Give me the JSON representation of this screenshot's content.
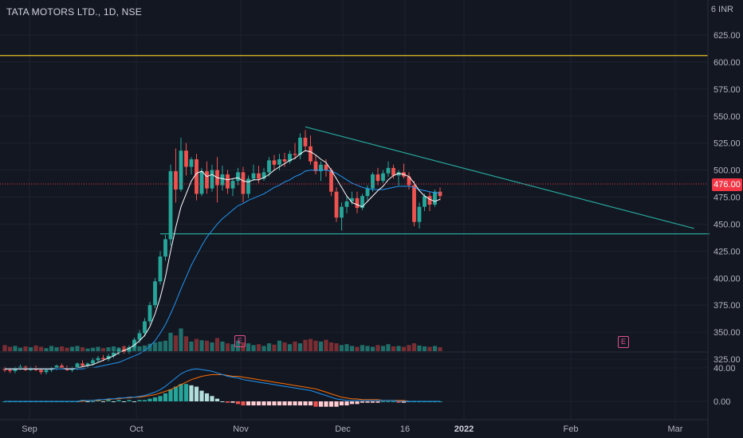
{
  "header": {
    "symbol_title": "TATA MOTORS LTD., 1D, NSE",
    "currency": "INR",
    "currency_prefix": "6"
  },
  "price": {
    "current": 476.0,
    "current_label": "476.00",
    "last_close_color": "#f23645"
  },
  "colors": {
    "up": "#26a69a",
    "down": "#ef5350",
    "vol_up": "#1f6f6a",
    "vol_down": "#7a2e33",
    "ma_fast": "#ffffff",
    "ma_slow": "#2196f3",
    "trend": "#26a69a",
    "resistance": "#e6c229",
    "macd": "#2196f3",
    "signal": "#ff6d00"
  },
  "events": [
    {
      "label": "E"
    },
    {
      "label": "E"
    }
  ],
  "chart_data": {
    "type": "candlestick",
    "y_axis": {
      "ticks": [
        325,
        350,
        375,
        400,
        425,
        450,
        475,
        500,
        525,
        550,
        575,
        600,
        625
      ],
      "tick_labels": [
        "325.00",
        "350.00",
        "375.00",
        "400.00",
        "425.00",
        "450.00",
        "475.00",
        "500.00",
        "525.00",
        "550.00",
        "575.00",
        "600.00",
        "625.00"
      ]
    },
    "macd_axis": {
      "ticks": [
        0,
        40
      ],
      "tick_labels": [
        "0.00",
        "40.00"
      ]
    },
    "x_axis": {
      "labels": [
        "Sep",
        "Oct",
        "Nov",
        "Dec",
        "16",
        "2022",
        "Feb",
        "Mar"
      ],
      "bold": [
        "2022"
      ]
    },
    "horizontal_lines": [
      {
        "price": 606,
        "name": "resistance"
      },
      {
        "price": 441,
        "name": "support"
      }
    ],
    "trendline": {
      "from": {
        "bar": 58,
        "price": 540
      },
      "to": {
        "bar": 133,
        "price": 446
      }
    },
    "candles": [
      [
        316,
        318,
        313,
        315
      ],
      [
        315,
        317,
        312,
        314
      ],
      [
        314,
        318,
        312,
        317
      ],
      [
        317,
        320,
        315,
        318
      ],
      [
        318,
        319,
        314,
        315
      ],
      [
        315,
        318,
        314,
        317
      ],
      [
        317,
        319,
        314,
        315
      ],
      [
        315,
        317,
        311,
        313
      ],
      [
        313,
        316,
        311,
        315
      ],
      [
        315,
        318,
        313,
        317
      ],
      [
        317,
        320,
        315,
        319
      ],
      [
        319,
        321,
        316,
        317
      ],
      [
        317,
        319,
        314,
        315
      ],
      [
        315,
        318,
        313,
        317
      ],
      [
        317,
        322,
        315,
        321
      ],
      [
        321,
        324,
        318,
        319
      ],
      [
        319,
        322,
        317,
        321
      ],
      [
        321,
        326,
        319,
        324
      ],
      [
        324,
        328,
        322,
        326
      ],
      [
        326,
        329,
        323,
        325
      ],
      [
        325,
        330,
        323,
        328
      ],
      [
        328,
        333,
        326,
        331
      ],
      [
        331,
        336,
        329,
        334
      ],
      [
        334,
        337,
        330,
        332
      ],
      [
        332,
        338,
        330,
        336
      ],
      [
        336,
        345,
        334,
        343
      ],
      [
        343,
        352,
        340,
        349
      ],
      [
        349,
        363,
        346,
        360
      ],
      [
        360,
        378,
        357,
        375
      ],
      [
        375,
        400,
        372,
        397
      ],
      [
        397,
        425,
        394,
        420
      ],
      [
        420,
        440,
        416,
        436
      ],
      [
        436,
        505,
        430,
        499
      ],
      [
        499,
        520,
        470,
        482
      ],
      [
        482,
        530,
        480,
        518
      ],
      [
        518,
        525,
        495,
        503
      ],
      [
        503,
        512,
        496,
        510
      ],
      [
        510,
        515,
        472,
        478
      ],
      [
        478,
        502,
        476,
        499
      ],
      [
        499,
        508,
        478,
        483
      ],
      [
        483,
        505,
        480,
        500
      ],
      [
        500,
        512,
        470,
        486
      ],
      [
        486,
        504,
        481,
        496
      ],
      [
        496,
        500,
        478,
        483
      ],
      [
        483,
        492,
        476,
        490
      ],
      [
        490,
        502,
        486,
        498
      ],
      [
        498,
        503,
        470,
        478
      ],
      [
        478,
        495,
        474,
        492
      ],
      [
        492,
        505,
        490,
        497
      ],
      [
        497,
        504,
        488,
        492
      ],
      [
        492,
        502,
        490,
        498
      ],
      [
        498,
        512,
        494,
        509
      ],
      [
        509,
        514,
        500,
        505
      ],
      [
        505,
        515,
        500,
        510
      ],
      [
        510,
        516,
        503,
        508
      ],
      [
        508,
        518,
        506,
        515
      ],
      [
        515,
        525,
        510,
        514
      ],
      [
        514,
        534,
        510,
        530
      ],
      [
        530,
        537,
        518,
        522
      ],
      [
        522,
        532,
        505,
        508
      ],
      [
        508,
        514,
        496,
        499
      ],
      [
        499,
        508,
        490,
        505
      ],
      [
        505,
        510,
        494,
        500
      ],
      [
        500,
        502,
        476,
        480
      ],
      [
        480,
        484,
        452,
        456
      ],
      [
        456,
        470,
        444,
        466
      ],
      [
        466,
        476,
        460,
        471
      ],
      [
        471,
        480,
        468,
        474
      ],
      [
        474,
        480,
        460,
        465
      ],
      [
        465,
        478,
        463,
        476
      ],
      [
        476,
        486,
        472,
        483
      ],
      [
        483,
        498,
        480,
        496
      ],
      [
        496,
        502,
        486,
        490
      ],
      [
        490,
        500,
        488,
        497
      ],
      [
        497,
        508,
        494,
        502
      ],
      [
        502,
        505,
        492,
        495
      ],
      [
        495,
        500,
        486,
        498
      ],
      [
        498,
        506,
        492,
        494
      ],
      [
        494,
        498,
        482,
        486
      ],
      [
        486,
        490,
        448,
        452
      ],
      [
        452,
        470,
        446,
        466
      ],
      [
        466,
        478,
        462,
        476
      ],
      [
        476,
        480,
        462,
        468
      ],
      [
        468,
        482,
        466,
        480
      ],
      [
        480,
        484,
        472,
        476
      ]
    ],
    "ma_fast": [
      316,
      316,
      316,
      316,
      316,
      316,
      316,
      316,
      316,
      316,
      317,
      317,
      316,
      316,
      317,
      318,
      319,
      320,
      322,
      324,
      326,
      328,
      331,
      333,
      335,
      338,
      342,
      347,
      355,
      367,
      382,
      401,
      425,
      447,
      466,
      478,
      490,
      497,
      499,
      494,
      496,
      493,
      492,
      491,
      492,
      493,
      490,
      489,
      491,
      491,
      493,
      496,
      500,
      503,
      506,
      509,
      511,
      515,
      518,
      517,
      514,
      510,
      507,
      500,
      492,
      484,
      476,
      470,
      468,
      466,
      471,
      476,
      481,
      485,
      491,
      495,
      497,
      496,
      494,
      488,
      481,
      476,
      473,
      471,
      473
    ],
    "ma_slow": [
      316,
      316,
      316,
      316,
      316,
      316,
      316,
      316,
      316,
      316,
      316,
      316,
      316,
      316,
      316,
      316,
      317,
      317,
      318,
      319,
      320,
      321,
      322,
      324,
      326,
      328,
      330,
      333,
      337,
      342,
      349,
      357,
      367,
      378,
      390,
      401,
      412,
      421,
      430,
      438,
      444,
      450,
      455,
      459,
      463,
      467,
      469,
      472,
      474,
      476,
      478,
      481,
      484,
      486,
      489,
      491,
      494,
      496,
      499,
      500,
      500,
      500,
      500,
      499,
      497,
      494,
      491,
      488,
      486,
      484,
      483,
      482,
      482,
      482,
      483,
      484,
      485,
      485,
      485,
      484,
      482,
      481,
      480,
      479,
      479
    ],
    "macd": [
      0,
      0,
      0,
      0,
      0,
      0,
      0,
      0,
      0,
      0,
      0,
      0,
      0,
      0,
      0,
      1,
      1,
      1,
      2,
      2,
      3,
      3,
      4,
      4,
      5,
      5,
      6,
      7,
      9,
      11,
      14,
      18,
      23,
      28,
      33,
      36,
      38,
      39,
      38,
      37,
      36,
      34,
      32,
      30,
      29,
      28,
      26,
      25,
      24,
      23,
      22,
      21,
      20,
      19,
      18,
      17,
      16,
      15,
      14,
      13,
      11,
      9,
      7,
      5,
      3,
      2,
      1,
      1,
      1,
      1,
      1,
      1,
      1,
      1,
      1,
      1,
      0,
      0,
      0,
      0,
      0,
      0,
      0,
      0,
      0
    ],
    "signal": [
      0,
      0,
      0,
      0,
      0,
      0,
      0,
      0,
      0,
      0,
      0,
      0,
      0,
      0,
      0,
      0,
      1,
      1,
      1,
      2,
      2,
      3,
      3,
      4,
      4,
      5,
      5,
      6,
      7,
      8,
      10,
      12,
      14,
      17,
      20,
      23,
      26,
      28,
      30,
      31,
      32,
      32,
      32,
      31,
      30,
      30,
      29,
      28,
      27,
      26,
      25,
      24,
      23,
      22,
      21,
      20,
      19,
      18,
      17,
      16,
      15,
      13,
      11,
      9,
      7,
      5,
      4,
      3,
      3,
      2,
      2,
      2,
      2,
      1,
      1,
      1,
      1,
      1,
      0,
      0,
      0,
      0,
      0,
      0,
      0
    ],
    "volume": [
      14,
      10,
      12,
      8,
      11,
      9,
      13,
      10,
      7,
      12,
      9,
      11,
      8,
      10,
      12,
      9,
      6,
      8,
      10,
      7,
      9,
      11,
      8,
      12,
      9,
      14,
      11,
      13,
      17,
      20,
      22,
      24,
      42,
      36,
      52,
      34,
      22,
      28,
      25,
      24,
      20,
      30,
      22,
      18,
      16,
      24,
      20,
      18,
      14,
      16,
      12,
      18,
      15,
      24,
      20,
      16,
      22,
      18,
      26,
      28,
      24,
      22,
      26,
      20,
      18,
      14,
      16,
      12,
      10,
      14,
      12,
      10,
      14,
      12,
      16,
      11,
      12,
      10,
      14,
      18,
      13,
      11,
      10,
      12,
      9
    ]
  }
}
